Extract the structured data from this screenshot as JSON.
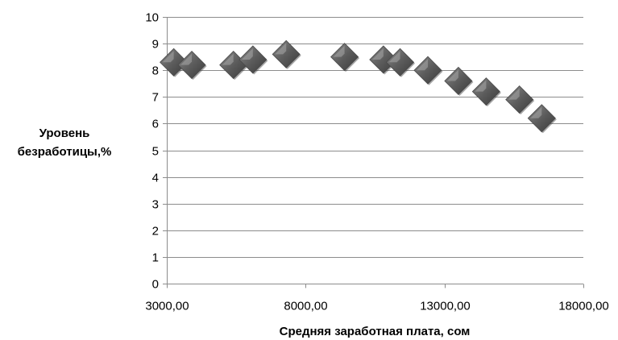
{
  "chart_data": {
    "type": "scatter",
    "title": "",
    "xlabel": "Средняя заработная плата, сом",
    "ylabel_lines": [
      "Уровень",
      "безработицы,%"
    ],
    "xlim": [
      3000,
      18000
    ],
    "ylim": [
      0,
      10
    ],
    "x_ticks": [
      3000,
      8000,
      13000,
      18000
    ],
    "x_tick_labels": [
      "3000,00",
      "8000,00",
      "13000,00",
      "18000,00"
    ],
    "y_ticks": [
      0,
      1,
      2,
      3,
      4,
      5,
      6,
      7,
      8,
      9,
      10
    ],
    "y_tick_labels": [
      "0",
      "1",
      "2",
      "3",
      "4",
      "5",
      "6",
      "7",
      "8",
      "9",
      "10"
    ],
    "grid": "horizontal",
    "marker": "diamond",
    "marker_color": "#595959",
    "points": [
      {
        "x": 3250,
        "y": 8.3
      },
      {
        "x": 3900,
        "y": 8.2
      },
      {
        "x": 5400,
        "y": 8.2
      },
      {
        "x": 6100,
        "y": 8.4
      },
      {
        "x": 7300,
        "y": 8.6
      },
      {
        "x": 9400,
        "y": 8.5
      },
      {
        "x": 10800,
        "y": 8.4
      },
      {
        "x": 11400,
        "y": 8.3
      },
      {
        "x": 12400,
        "y": 8.0
      },
      {
        "x": 13500,
        "y": 7.6
      },
      {
        "x": 14500,
        "y": 7.2
      },
      {
        "x": 15700,
        "y": 6.9
      },
      {
        "x": 16500,
        "y": 6.2
      }
    ]
  }
}
